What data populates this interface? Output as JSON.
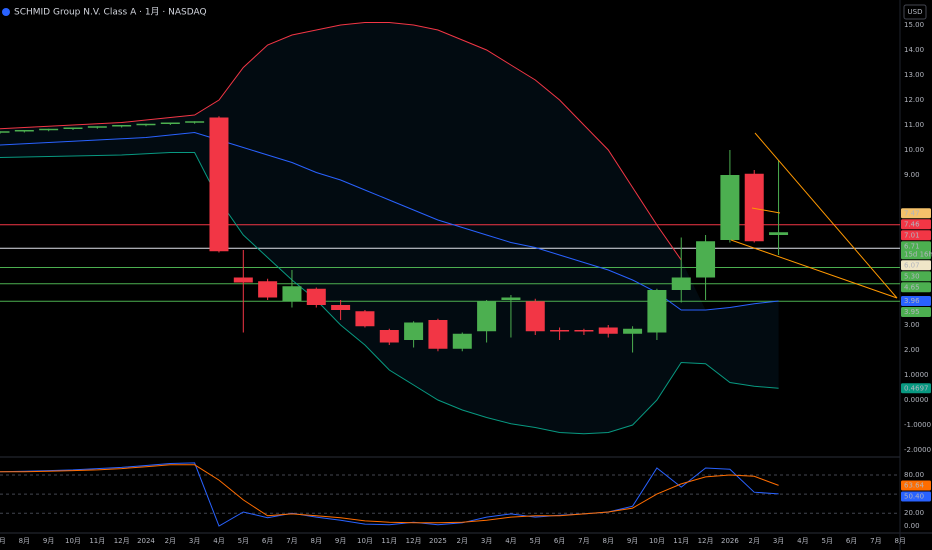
{
  "chart_data": [
    {
      "type": "candlestick",
      "title": "SCHMID Group N.V. Class A · 1月 · NASDAQ",
      "currency": "USD",
      "categories": [
        "7月",
        "8月",
        "9月",
        "10月",
        "11月",
        "12月",
        "2024",
        "2月",
        "3月",
        "4月",
        "5月",
        "6月",
        "7月",
        "8月",
        "9月",
        "10月",
        "11月",
        "12月",
        "2025",
        "2月",
        "3月",
        "4月",
        "5月",
        "6月",
        "7月",
        "8月",
        "9月",
        "10月",
        "11月",
        "12月",
        "2026",
        "2月",
        "3月",
        "4月",
        "5月",
        "6月",
        "7月",
        "8月"
      ],
      "open": [
        10.7,
        10.75,
        10.8,
        10.85,
        10.9,
        10.95,
        11.0,
        11.05,
        11.1,
        11.3,
        4.9,
        4.75,
        3.95,
        4.45,
        3.8,
        3.55,
        2.8,
        2.4,
        3.2,
        2.05,
        2.75,
        4.0,
        3.95,
        2.8,
        2.8,
        2.9,
        2.65,
        2.7,
        4.4,
        4.9,
        6.4,
        9.05,
        6.6,
        null,
        null,
        null,
        null,
        null
      ],
      "high": [
        10.75,
        10.8,
        10.85,
        10.9,
        10.95,
        11.0,
        11.05,
        11.1,
        11.15,
        11.35,
        6.0,
        4.85,
        5.2,
        4.5,
        4.0,
        3.6,
        2.85,
        3.15,
        3.25,
        2.7,
        4.0,
        4.2,
        4.05,
        2.9,
        2.85,
        3.0,
        2.95,
        4.45,
        6.5,
        6.6,
        10.0,
        9.2,
        9.6,
        null,
        null,
        null,
        null,
        null
      ],
      "low": [
        10.65,
        10.7,
        10.75,
        10.8,
        10.85,
        10.9,
        10.95,
        11.0,
        11.05,
        5.9,
        2.7,
        4.0,
        3.7,
        3.7,
        3.2,
        2.9,
        2.2,
        2.1,
        1.95,
        1.95,
        2.3,
        2.5,
        2.6,
        2.4,
        2.6,
        2.5,
        1.9,
        2.4,
        3.9,
        4.0,
        6.3,
        6.3,
        5.8,
        null,
        null,
        null,
        null,
        null
      ],
      "close": [
        10.75,
        10.8,
        10.85,
        10.9,
        10.95,
        11.0,
        11.05,
        11.1,
        11.15,
        5.95,
        4.7,
        4.1,
        4.55,
        3.8,
        3.6,
        2.95,
        2.3,
        3.1,
        2.05,
        2.65,
        3.95,
        4.1,
        2.75,
        2.75,
        2.75,
        2.65,
        2.85,
        4.4,
        4.9,
        6.35,
        9.0,
        6.35,
        6.71,
        null,
        null,
        null,
        null,
        null
      ],
      "up_color": "#4caf50",
      "down_color": "#f23645",
      "bands": {
        "upper": [
          10.85,
          10.9,
          10.95,
          11.0,
          11.05,
          11.1,
          11.2,
          11.3,
          11.4,
          12.0,
          13.3,
          14.2,
          14.6,
          14.8,
          15.0,
          15.1,
          15.1,
          15.0,
          14.8,
          14.4,
          14.0,
          13.4,
          12.8,
          12.0,
          11.0,
          10.0,
          8.5,
          7.0,
          5.6,
          null,
          null,
          null,
          null,
          null,
          null,
          null,
          null,
          null
        ],
        "upper_color": "#f23645",
        "basis": [
          10.2,
          10.25,
          10.3,
          10.35,
          10.4,
          10.45,
          10.5,
          10.6,
          10.7,
          10.4,
          10.1,
          9.8,
          9.5,
          9.1,
          8.8,
          8.4,
          8.0,
          7.6,
          7.2,
          6.9,
          6.6,
          6.3,
          6.1,
          5.8,
          5.5,
          5.2,
          4.8,
          4.3,
          3.6,
          3.6,
          3.7,
          3.85,
          3.96,
          null,
          null,
          null,
          null,
          null
        ],
        "basis_color": "#2962ff",
        "lower": [
          9.7,
          9.72,
          9.74,
          9.76,
          9.78,
          9.8,
          9.85,
          9.9,
          9.9,
          8.0,
          6.6,
          5.7,
          4.8,
          4.0,
          3.0,
          2.2,
          1.2,
          0.6,
          0,
          -0.4,
          -0.7,
          -0.95,
          -1.1,
          -1.3,
          -1.35,
          -1.3,
          -1.0,
          0,
          1.5,
          1.45,
          0.7,
          0.55,
          0.4697,
          null,
          null,
          null,
          null,
          null
        ],
        "lower_color": "#089981",
        "fill": "rgba(33,150,243,0.07)"
      },
      "ylim": [
        -2.24,
        16
      ],
      "yticks": [
        {
          "value": 15,
          "label": "15.00"
        },
        {
          "value": 14,
          "label": "14.00"
        },
        {
          "value": 13,
          "label": "13.00"
        },
        {
          "value": 12,
          "label": "12.00"
        },
        {
          "value": 11,
          "label": "11.00"
        },
        {
          "value": 10,
          "label": "10.00"
        },
        {
          "value": 9,
          "label": "9.00"
        },
        {
          "value": 3,
          "label": "3.00"
        },
        {
          "value": 2,
          "label": "2.00"
        },
        {
          "value": 1,
          "label": "1.0000"
        },
        {
          "value": 0,
          "label": "0.0000"
        },
        {
          "value": -1,
          "label": "-1.0000"
        },
        {
          "value": -2,
          "label": "-2.0000"
        }
      ],
      "price_labels": [
        {
          "value": 7.47,
          "label": "7.47",
          "color": "#f5c26b",
          "text_color": "#000000",
          "line": false
        },
        {
          "value": 7.46,
          "label": "7.46",
          "color": "#f23645",
          "text_color": "#ffffff",
          "line": false
        },
        {
          "value": 7.01,
          "label": "7.01",
          "color": "#f23645",
          "text_color": "#ffffff",
          "line": true
        },
        {
          "value": 6.71,
          "label": "6.71",
          "countdown": "15d 16h",
          "color": "#4caf50",
          "text_color": "#ffffff",
          "line": false
        },
        {
          "value": 6.07,
          "label": "6.07",
          "color": "#f0e6c8",
          "text_color": "#000000",
          "line": true
        },
        {
          "value": 5.3,
          "label": "5.30",
          "color": "#4caf50",
          "text_color": "#000000",
          "line": true
        },
        {
          "value": 4.65,
          "label": "4.65",
          "color": "#4caf50",
          "text_color": "#000000",
          "line": true
        },
        {
          "value": 3.96,
          "label": "3.96",
          "color": "#2962ff",
          "text_color": "#ffffff",
          "line": false
        },
        {
          "value": 3.95,
          "label": "3.95",
          "color": "#4caf50",
          "text_color": "#000000",
          "line": true
        },
        {
          "value": 0.4697,
          "label": "0.4697",
          "color": "#089981",
          "text_color": "#ffffff",
          "line": false
        }
      ]
    },
    {
      "type": "line",
      "series": [
        {
          "color": "#2962ff",
          "values": [
            85,
            86,
            87,
            88,
            90,
            92,
            95,
            98,
            99,
            0,
            22,
            13,
            20,
            14,
            9,
            3,
            2,
            6,
            2,
            5,
            14,
            19,
            14,
            17,
            19,
            22,
            31,
            91,
            61,
            91,
            89,
            53,
            50.4,
            null,
            null,
            null,
            null,
            null
          ]
        },
        {
          "color": "#ff6d00",
          "values": [
            85,
            85,
            86,
            87,
            88,
            90,
            93,
            96,
            96,
            72,
            41,
            16,
            19,
            16,
            13,
            8,
            6,
            5,
            5,
            6,
            9,
            14,
            16,
            16,
            19,
            22,
            28,
            50,
            66,
            77,
            80,
            78,
            63.64,
            null,
            null,
            null,
            null,
            null
          ]
        }
      ],
      "ylim": [
        -11,
        106.7
      ],
      "yticks": [
        {
          "value": 80,
          "label": "80.00"
        },
        {
          "value": 20,
          "label": "20.00"
        },
        {
          "value": 0,
          "label": "0.00"
        }
      ],
      "levels": [
        80,
        50,
        20
      ],
      "price_labels": [
        {
          "value": 63.64,
          "label": "63.64",
          "color": "#ff6d00",
          "text_color": "#ffffff"
        },
        {
          "value": 50.4,
          "label": "50.40",
          "color": "#2962ff",
          "text_color": "#ffffff"
        }
      ]
    }
  ]
}
